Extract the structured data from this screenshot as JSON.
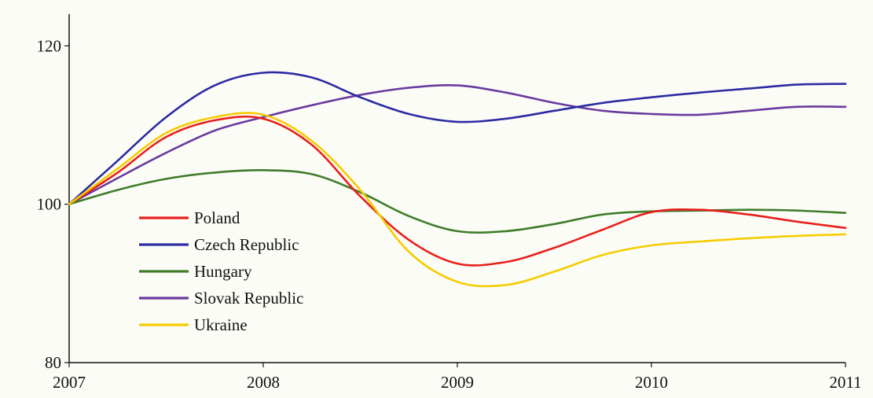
{
  "chart_data": {
    "type": "line",
    "x": [
      2007,
      2007.25,
      2007.5,
      2007.75,
      2008,
      2008.25,
      2008.5,
      2008.75,
      2009,
      2009.25,
      2009.5,
      2009.75,
      2010,
      2010.25,
      2010.5,
      2010.75,
      2011
    ],
    "xticks": [
      2007,
      2008,
      2009,
      2010,
      2011
    ],
    "xtick_labels": [
      "2007",
      "2008",
      "2009",
      "2010",
      "2011"
    ],
    "yticks": [
      80,
      100,
      120
    ],
    "ytick_labels": [
      "80",
      "100",
      "120"
    ],
    "xlim": [
      2007,
      2011
    ],
    "ylim": [
      80,
      124
    ],
    "grid": false,
    "legend_position": "center-left",
    "series": [
      {
        "name": "Poland",
        "color": "#e8201c",
        "values": [
          100,
          104,
          108.5,
          110.6,
          110.8,
          107.5,
          101,
          95.5,
          92.5,
          92.7,
          94.5,
          96.8,
          99,
          99.3,
          98.7,
          97.8,
          97
        ]
      },
      {
        "name": "Czech Republic",
        "color": "#2b2ba3",
        "values": [
          100,
          105.5,
          111,
          115,
          116.6,
          116,
          113.5,
          111.4,
          110.4,
          110.8,
          111.8,
          112.8,
          113.5,
          114.1,
          114.6,
          115.1,
          115.2
        ]
      },
      {
        "name": "Hungary",
        "color": "#3f7d2a",
        "values": [
          100,
          101.8,
          103.2,
          104,
          104.3,
          103.8,
          101.5,
          98.5,
          96.6,
          96.6,
          97.5,
          98.7,
          99.1,
          99.2,
          99.3,
          99.2,
          98.9
        ]
      },
      {
        "name": "Slovak Republic",
        "color": "#6a3b9e",
        "values": [
          100,
          103.3,
          106.5,
          109.3,
          111,
          112.5,
          113.8,
          114.7,
          115,
          114.1,
          112.8,
          111.8,
          111.4,
          111.3,
          111.8,
          112.3,
          112.3
        ]
      },
      {
        "name": "Ukraine",
        "color": "#f5cc00",
        "values": [
          100,
          104.5,
          109,
          111,
          111.3,
          108,
          101.8,
          94,
          90.2,
          89.8,
          91.5,
          93.6,
          94.8,
          95.3,
          95.7,
          96,
          96.2
        ]
      }
    ]
  }
}
